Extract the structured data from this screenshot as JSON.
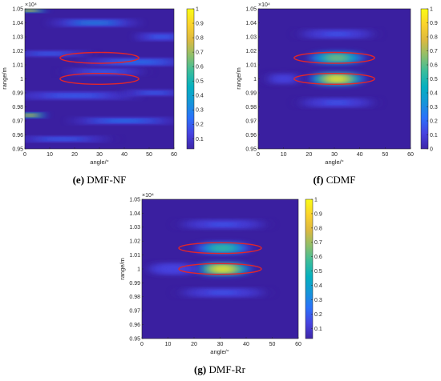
{
  "colors": {
    "background": "#3a1fa0",
    "ellipse": "#e3262a",
    "colormap": [
      "#3e26a8",
      "#4743e0",
      "#2b71fa",
      "#1596d8",
      "#05b0bf",
      "#3bbd9b",
      "#8ebf6b",
      "#ddb940",
      "#fbd32c",
      "#f9fb15"
    ]
  },
  "chart_data": [
    {
      "type": "heatmap",
      "panel": "e",
      "caption_letter": "(e)",
      "caption_text": " DMF-NF",
      "xlabel": "angle/°",
      "ylabel": "range/m",
      "exponent_label": "×10⁴",
      "xlim": [
        0,
        60
      ],
      "ylim": [
        9500,
        10500
      ],
      "xticks": [
        0,
        10,
        20,
        30,
        40,
        50,
        60
      ],
      "yticks": [
        9500,
        9600,
        9700,
        9800,
        9900,
        10000,
        10100,
        10200,
        10300,
        10400,
        10500
      ],
      "ytick_labels": [
        "0.95",
        "0.96",
        "0.97",
        "0.98",
        "0.99",
        "1",
        "1.01",
        "1.02",
        "1.03",
        "1.04",
        "1.05"
      ],
      "colorbar_ticks": [
        "0.1",
        "0.2",
        "0.3",
        "0.4",
        "0.5",
        "0.6",
        "0.7",
        "0.8",
        "0.9",
        "1"
      ],
      "colorbar_range": [
        0.03,
        1
      ],
      "peaks": [
        {
          "angle": 2,
          "range": 10490,
          "value": 1.0,
          "ang_sigma": 4,
          "rng_sigma": 6
        },
        {
          "angle": 2,
          "range": 9740,
          "value": 0.95,
          "ang_sigma": 4,
          "rng_sigma": 7
        },
        {
          "angle": 28,
          "range": 10400,
          "value": 0.35,
          "ang_sigma": 10,
          "rng_sigma": 10
        },
        {
          "angle": 45,
          "range": 10120,
          "value": 0.3,
          "ang_sigma": 12,
          "rng_sigma": 10
        },
        {
          "angle": 20,
          "range": 9880,
          "value": 0.25,
          "ang_sigma": 14,
          "rng_sigma": 10
        },
        {
          "angle": 40,
          "range": 9700,
          "value": 0.28,
          "ang_sigma": 12,
          "rng_sigma": 9
        },
        {
          "angle": 15,
          "range": 9570,
          "value": 0.22,
          "ang_sigma": 12,
          "rng_sigma": 9
        },
        {
          "angle": 52,
          "range": 9900,
          "value": 0.22,
          "ang_sigma": 8,
          "rng_sigma": 9
        },
        {
          "angle": 55,
          "range": 10300,
          "value": 0.25,
          "ang_sigma": 6,
          "rng_sigma": 10
        },
        {
          "angle": 10,
          "range": 10180,
          "value": 0.22,
          "ang_sigma": 10,
          "rng_sigma": 9
        },
        {
          "angle": 32,
          "range": 10050,
          "value": 0.2,
          "ang_sigma": 10,
          "rng_sigma": 10
        }
      ],
      "markers": [
        {
          "angle": 30,
          "range": 10150,
          "ang_radius": 4.8,
          "rng_radius": 25
        },
        {
          "angle": 30,
          "range": 10000,
          "ang_radius": 4.8,
          "rng_radius": 25
        }
      ]
    },
    {
      "type": "heatmap",
      "panel": "f",
      "caption_letter": "(f)",
      "caption_text": " CDMF",
      "xlabel": "angle/°",
      "ylabel": "range/m",
      "exponent_label": "×10⁴",
      "xlim": [
        0,
        60
      ],
      "ylim": [
        9500,
        10500
      ],
      "xticks": [
        0,
        10,
        20,
        30,
        40,
        50,
        60
      ],
      "yticks": [
        9500,
        9600,
        9700,
        9800,
        9900,
        10000,
        10100,
        10200,
        10300,
        10400,
        10500
      ],
      "ytick_labels": [
        "0.95",
        "0.96",
        "0.97",
        "0.98",
        "0.99",
        "1",
        "1.01",
        "1.02",
        "1.03",
        "1.04",
        "1.05"
      ],
      "colorbar_ticks": [
        "0",
        "0.1",
        "0.2",
        "0.3",
        "0.4",
        "0.5",
        "0.6",
        "0.7",
        "0.8",
        "0.9",
        "1"
      ],
      "colorbar_range": [
        0,
        1
      ],
      "peaks": [
        {
          "angle": 31,
          "range": 10000,
          "value": 1.0,
          "ang_sigma": 6,
          "rng_sigma": 22
        },
        {
          "angle": 31,
          "range": 10150,
          "value": 0.72,
          "ang_sigma": 6,
          "rng_sigma": 20
        },
        {
          "angle": 31,
          "range": 10320,
          "value": 0.18,
          "ang_sigma": 9,
          "rng_sigma": 14
        },
        {
          "angle": 31,
          "range": 9830,
          "value": 0.18,
          "ang_sigma": 9,
          "rng_sigma": 14
        },
        {
          "angle": 10,
          "range": 10000,
          "value": 0.12,
          "ang_sigma": 5,
          "rng_sigma": 20
        }
      ],
      "markers": [
        {
          "angle": 30,
          "range": 10150,
          "ang_radius": 4.8,
          "rng_radius": 25
        },
        {
          "angle": 30,
          "range": 10000,
          "ang_radius": 4.8,
          "rng_radius": 25
        }
      ]
    },
    {
      "type": "heatmap",
      "panel": "g",
      "caption_letter": "(g)",
      "caption_text": " DMF-Rr",
      "xlabel": "angle/°",
      "ylabel": "range/m",
      "exponent_label": "×10⁴",
      "xlim": [
        0,
        60
      ],
      "ylim": [
        9500,
        10500
      ],
      "xticks": [
        0,
        10,
        20,
        30,
        40,
        50,
        60
      ],
      "yticks": [
        9500,
        9600,
        9700,
        9800,
        9900,
        10000,
        10100,
        10200,
        10300,
        10400,
        10500
      ],
      "ytick_labels": [
        "0.95",
        "0.96",
        "0.97",
        "0.98",
        "0.99",
        "1",
        "1.01",
        "1.02",
        "1.03",
        "1.04",
        "1.05"
      ],
      "colorbar_ticks": [
        "0.1",
        "0.2",
        "0.3",
        "0.4",
        "0.5",
        "0.6",
        "0.7",
        "0.8",
        "0.9",
        "1"
      ],
      "colorbar_range": [
        0.03,
        1
      ],
      "peaks": [
        {
          "angle": 31,
          "range": 10000,
          "value": 1.0,
          "ang_sigma": 6,
          "rng_sigma": 22
        },
        {
          "angle": 31,
          "range": 10150,
          "value": 0.6,
          "ang_sigma": 6,
          "rng_sigma": 20
        },
        {
          "angle": 31,
          "range": 10320,
          "value": 0.18,
          "ang_sigma": 10,
          "rng_sigma": 14
        },
        {
          "angle": 31,
          "range": 9830,
          "value": 0.18,
          "ang_sigma": 10,
          "rng_sigma": 14
        },
        {
          "angle": 12,
          "range": 10000,
          "value": 0.15,
          "ang_sigma": 6,
          "rng_sigma": 20
        }
      ],
      "markers": [
        {
          "angle": 30,
          "range": 10150,
          "ang_radius": 4.8,
          "rng_radius": 25
        },
        {
          "angle": 30,
          "range": 10000,
          "ang_radius": 4.8,
          "rng_radius": 25
        }
      ]
    }
  ]
}
